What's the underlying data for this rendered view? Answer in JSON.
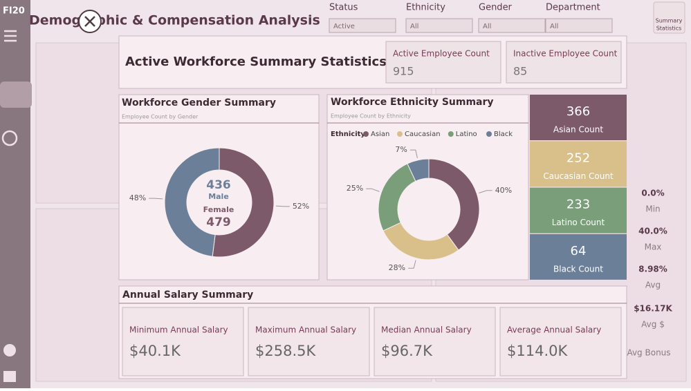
{
  "sidebar": {
    "logo": "FI20"
  },
  "header": {
    "title": "Demographic & Compensation Analysis",
    "filters": [
      {
        "label": "Status",
        "value": "Active"
      },
      {
        "label": "Ethnicity",
        "value": "All"
      },
      {
        "label": "Gender",
        "value": "All"
      },
      {
        "label": "Department",
        "value": "All"
      }
    ],
    "button_lines": [
      "Summary",
      "Statistics"
    ]
  },
  "background_stats": [
    {
      "value": "0.0%",
      "label": "Min"
    },
    {
      "value": "40.0%",
      "label": "Max"
    },
    {
      "value": "8.98%",
      "label": "Avg"
    },
    {
      "value": "$16.17K",
      "label": "Avg $"
    },
    {
      "label": "Avg Bonus"
    }
  ],
  "modal": {
    "title": "Active Workforce Summary Statistics",
    "kpis": [
      {
        "label": "Active Employee Count",
        "value": 915
      },
      {
        "label": "Inactive Employee Count",
        "value": 85
      }
    ],
    "gender": {
      "title": "Workforce Gender Summary",
      "subtitle": "Employee Count by Gender",
      "categories": [
        "Female",
        "Male"
      ],
      "values": [
        52,
        48
      ],
      "value_labels": [
        "52%",
        "48%"
      ],
      "colors": [
        "#7d5a6a",
        "#6b7f99"
      ],
      "center": [
        {
          "count": 436,
          "label": "Male"
        },
        {
          "label": "Female",
          "count": 479
        }
      ]
    },
    "ethnicity": {
      "title": "Workforce Ethnicity Summary",
      "subtitle": "Employee Count by Ethnicity",
      "legend_title": "Ethnicity",
      "categories": [
        "Asian",
        "Caucasian",
        "Latino",
        "Black"
      ],
      "values": [
        40,
        28,
        25,
        7
      ],
      "value_labels": [
        "40%",
        "28%",
        "25%",
        "7%"
      ],
      "colors": [
        "#7d5a6a",
        "#d9c08a",
        "#7a9e7a",
        "#6b7f99"
      ]
    },
    "counts": [
      {
        "value": 366,
        "label": "Asian Count",
        "color": "#7d5a6a"
      },
      {
        "value": 252,
        "label": "Caucasian Count",
        "color": "#d9c08a"
      },
      {
        "value": 233,
        "label": "Latino Count",
        "color": "#7a9e7a"
      },
      {
        "value": 64,
        "label": "Black Count",
        "color": "#6b7f99"
      }
    ],
    "salary": {
      "title": "Annual Salary Summary",
      "cards": [
        {
          "label": "Minimum Annual Salary",
          "value": "$40.1K"
        },
        {
          "label": "Maximum Annual Salary",
          "value": "$258.5K"
        },
        {
          "label": "Median Annual Salary",
          "value": "$96.7K"
        },
        {
          "label": "Average Annual Salary",
          "value": "$114.0K"
        }
      ]
    }
  }
}
